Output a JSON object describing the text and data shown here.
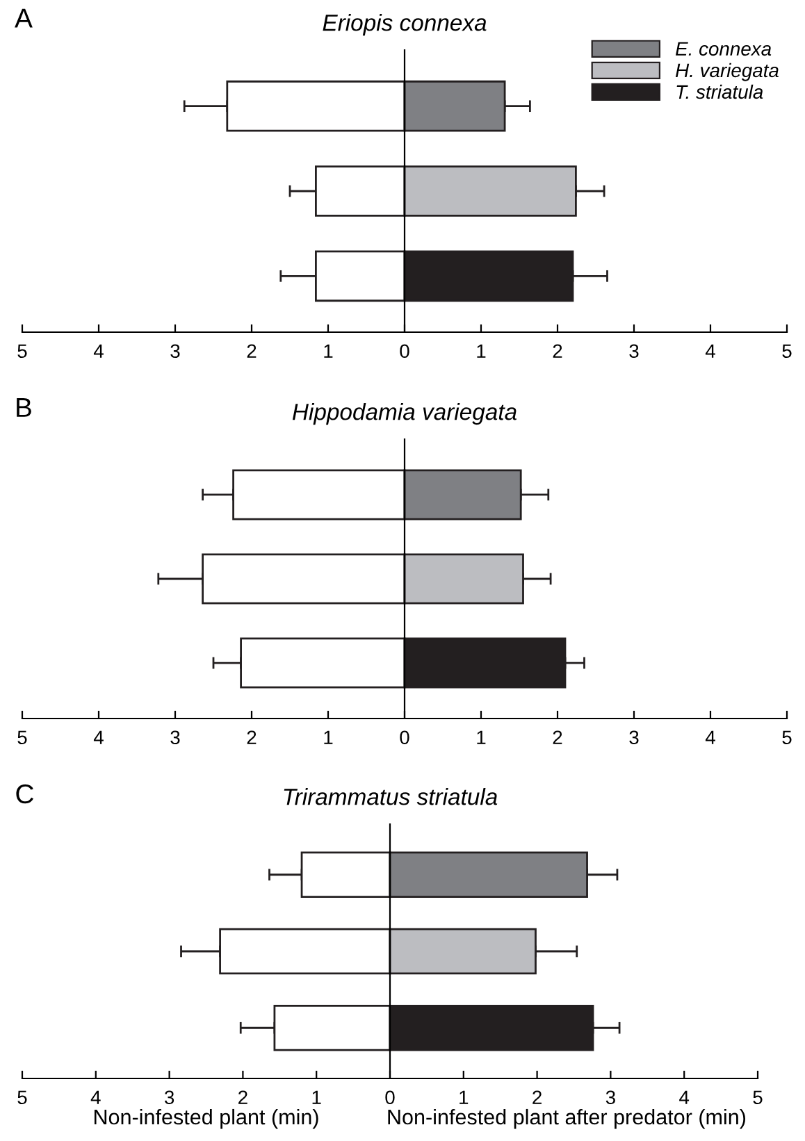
{
  "chart_data": [
    {
      "type": "bar",
      "orientation": "horizontal",
      "stacked": true,
      "title": "Eriopis connexa",
      "categories": [
        null,
        null,
        null
      ],
      "xlim": [
        -5,
        5
      ],
      "xticks": [
        {
          "value": -5,
          "label": "5"
        },
        {
          "value": -4,
          "label": "4"
        },
        {
          "value": -3,
          "label": "3"
        },
        {
          "value": -2,
          "label": "2"
        },
        {
          "value": -1,
          "label": "1"
        },
        0,
        1,
        2,
        3,
        4,
        5
      ],
      "legend": "top right",
      "annotations": [
        "A"
      ],
      "series": [
        {
          "color": "#ffffff",
          "values": [
            -2.32,
            -1.16,
            -1.16
          ],
          "errors": [
            0.56,
            0.34,
            0.46
          ]
        },
        {
          "name": "E. connexa",
          "color": "#7f8084",
          "values": [
            1.31,
            null,
            null
          ],
          "errors": [
            0.33,
            null,
            null
          ]
        },
        {
          "name": "H. variegata",
          "color": "#bcbdc1",
          "values": [
            null,
            2.24,
            null
          ],
          "errors": [
            null,
            0.37,
            null
          ]
        },
        {
          "name": "T. striatula",
          "color": "#231f20",
          "values": [
            null,
            null,
            2.2
          ],
          "errors": [
            null,
            null,
            0.45
          ]
        }
      ]
    },
    {
      "type": "bar",
      "orientation": "horizontal",
      "stacked": true,
      "title": "Hippodamia variegata",
      "categories": [
        null,
        null,
        null
      ],
      "xlim": [
        -5,
        5
      ],
      "xticks": [
        {
          "value": -5,
          "label": "5"
        },
        {
          "value": -4,
          "label": "4"
        },
        {
          "value": -3,
          "label": "3"
        },
        {
          "value": -2,
          "label": "2"
        },
        {
          "value": -1,
          "label": "1"
        },
        0,
        1,
        2,
        3,
        4,
        5
      ],
      "annotations": [
        "B"
      ],
      "series": [
        {
          "color": "#ffffff",
          "values": [
            -2.24,
            -2.64,
            -2.14
          ],
          "errors": [
            0.4,
            0.58,
            0.36
          ]
        },
        {
          "color": "#7f8084",
          "values": [
            1.52,
            null,
            null
          ],
          "errors": [
            0.36,
            null,
            null
          ]
        },
        {
          "color": "#bcbdc1",
          "values": [
            null,
            1.55,
            null
          ],
          "errors": [
            null,
            0.36,
            null
          ]
        },
        {
          "color": "#231f20",
          "values": [
            null,
            null,
            2.1
          ],
          "errors": [
            null,
            null,
            0.25
          ]
        }
      ]
    },
    {
      "type": "bar",
      "orientation": "horizontal",
      "stacked": true,
      "title": "Trirammatus striatula",
      "categories": [
        null,
        null,
        null
      ],
      "xlim": [
        -5,
        5
      ],
      "xticks": [
        {
          "value": -5,
          "label": "5"
        },
        {
          "value": -4,
          "label": "4"
        },
        {
          "value": -3,
          "label": "3"
        },
        {
          "value": -2,
          "label": "2"
        },
        {
          "value": -1,
          "label": "1"
        },
        0,
        1,
        2,
        3,
        4,
        5
      ],
      "annotations": [
        "C",
        "Non-infested plant (min)",
        "Non-infested plant after predator (min)"
      ],
      "series": [
        {
          "color": "#ffffff",
          "values": [
            -1.2,
            -2.31,
            -1.57
          ],
          "errors": [
            0.44,
            0.53,
            0.46
          ]
        },
        {
          "color": "#7f8084",
          "values": [
            2.68,
            null,
            null
          ],
          "errors": [
            0.41,
            null,
            null
          ]
        },
        {
          "color": "#bcbdc1",
          "values": [
            null,
            1.98,
            null
          ],
          "errors": [
            null,
            0.56,
            null
          ]
        },
        {
          "color": "#231f20",
          "values": [
            null,
            null,
            2.76
          ],
          "errors": [
            null,
            null,
            0.36
          ]
        }
      ]
    }
  ]
}
